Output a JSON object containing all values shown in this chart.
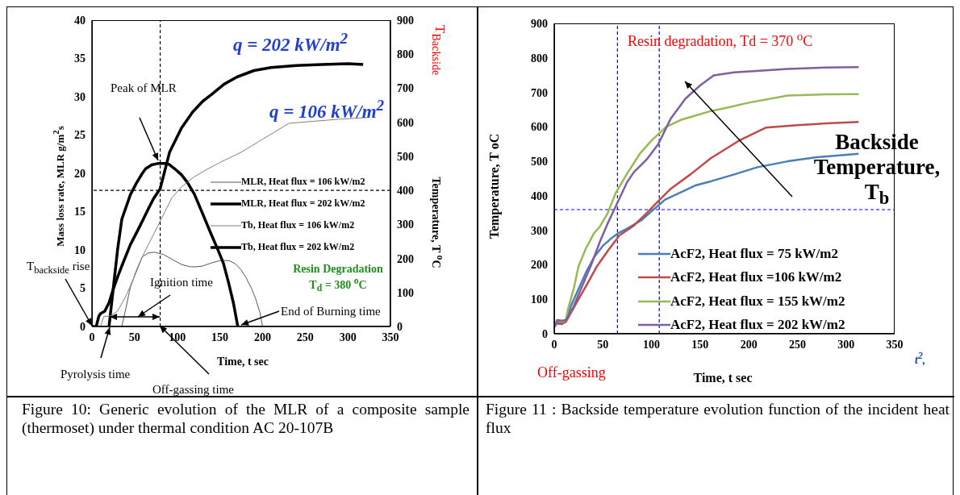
{
  "chart_data": [
    {
      "type": "line",
      "xlabel": "Time, t sec",
      "ylabel": "Mass loss rate, MLR g/m$^{2}$s",
      "y2label": "Temperature, T $^{o}$C",
      "xlim": [
        0,
        350
      ],
      "xticks": [
        0,
        50,
        100,
        150,
        200,
        250,
        300,
        350
      ],
      "ylim": [
        0,
        40
      ],
      "yticks": [
        0,
        5,
        10,
        15,
        20,
        25,
        30,
        35,
        40
      ],
      "y2lim": [
        0,
        900
      ],
      "y2ticks": [
        0,
        100,
        200,
        300,
        400,
        500,
        600,
        700,
        800,
        900
      ],
      "legend": "right",
      "marker": "none",
      "line_style": "solid",
      "series": [
        {
          "name": "MLR, Heat flux = 106 kW/m2",
          "color": "#555555",
          "x": [
            35,
            40,
            45,
            52,
            59,
            66,
            73,
            84,
            95,
            105,
            115,
            122,
            130,
            140,
            150,
            161,
            168,
            175,
            181,
            187,
            192,
            197,
            200
          ],
          "values": [
            0,
            2.5,
            5.1,
            7.3,
            9.1,
            9.6,
            9.7,
            9.4,
            8.7,
            8.1,
            7.8,
            7.8,
            7.9,
            8.3,
            8.6,
            8.6,
            8.2,
            7.4,
            6.3,
            5,
            3.6,
            1.8,
            0
          ]
        },
        {
          "name": "MLR, Heat flux = 202 kW/m2",
          "color": "#000000",
          "x": [
            20,
            25,
            30,
            35,
            45,
            52,
            59,
            63,
            70,
            78,
            85,
            90,
            97,
            105,
            112,
            120,
            128,
            134,
            140,
            147,
            154,
            160,
            166,
            171
          ],
          "values": [
            0,
            5,
            10,
            14,
            17.2,
            18.7,
            20,
            20.6,
            21.1,
            21.3,
            21.3,
            21.2,
            20.6,
            19.8,
            18.8,
            17.3,
            15.2,
            13.6,
            12,
            10.2,
            8.3,
            5.8,
            3,
            0
          ]
        },
        {
          "name": "Tb, Heat flux = 106 kW/m2",
          "color": "#808080",
          "axis": "y2",
          "x": [
            0,
            10,
            14,
            18,
            22,
            30,
            40,
            52,
            60,
            70,
            77,
            85,
            94,
            105,
            120,
            133,
            150,
            175,
            200,
            231,
            260,
            290,
            323
          ],
          "values": [
            0,
            0,
            30,
            30,
            32,
            45,
            90,
            160,
            210,
            260,
            294,
            335,
            379,
            410,
            440,
            459,
            482,
            512,
            550,
            597,
            603,
            609,
            614
          ]
        },
        {
          "name": "Tb, Heat flux = 202 kW/m2",
          "color": "#000000",
          "axis": "y2",
          "x": [
            0,
            5,
            8,
            10,
            15,
            20,
            25,
            30,
            35,
            45,
            56,
            65,
            72,
            80,
            91,
            105,
            118,
            130,
            140,
            155,
            170,
            190,
            210,
            240,
            270,
            300,
            318
          ],
          "values": [
            0,
            0,
            30,
            38,
            45,
            70,
            110,
            145,
            178,
            240,
            294,
            340,
            375,
            405,
            512,
            583,
            630,
            662,
            681,
            712,
            733,
            752,
            761,
            767,
            770,
            772,
            770
          ]
        }
      ],
      "ref_lines": [
        {
          "axis": "x",
          "value": 80,
          "color": "#000000",
          "line_style": "dashed"
        },
        {
          "axis": "y2",
          "value": 400,
          "color": "#000000",
          "line_style": "dashed"
        }
      ],
      "annotations": [
        "q = 202 kW/m$^{2}$",
        "q = 106 kW/m$^{2}$",
        "Peak of MLR",
        "T$_{backside}$ rise",
        "Ignition time",
        "End of Burning time",
        "Pyrolysis time",
        "Off-gassing time",
        "Resin Degradation\nT$_{d}$ = 380 $^{o}$C",
        "T$_{Backside}$",
        "Figure 10: Generic evolution of the MLR of a composite sample (thermoset) under thermal condition AC 20-107B"
      ]
    },
    {
      "type": "line",
      "xlabel": "Time, t sec",
      "ylabel": "Temperature, T oC",
      "xlim": [
        0,
        350
      ],
      "xticks": [
        0,
        50,
        100,
        150,
        200,
        250,
        300,
        350
      ],
      "ylim": [
        0,
        900
      ],
      "yticks": [
        0,
        100,
        200,
        300,
        400,
        500,
        600,
        700,
        800,
        900
      ],
      "legend": "bottom right",
      "marker": "none",
      "line_style": "solid",
      "series": [
        {
          "name": "AcF2, Heat flux = 75 kW/m2",
          "color": "#4a7ebb",
          "x": [
            0,
            3,
            8,
            12,
            17,
            25,
            33,
            41,
            50,
            58,
            66,
            75,
            90,
            100,
            114,
            130,
            145,
            161,
            185,
            209,
            240,
            270,
            313
          ],
          "values": [
            20,
            35,
            30,
            38,
            80,
            130,
            180,
            222,
            255,
            275,
            292,
            305,
            330,
            355,
            389,
            410,
            430,
            442,
            462,
            483,
            500,
            512,
            522
          ]
        },
        {
          "name": "AcF2, Heat flux =106 kW/m2",
          "color": "#be4b48",
          "x": [
            0,
            3,
            8,
            12,
            17,
            25,
            35,
            44,
            55,
            67,
            82,
            95,
            104,
            120,
            140,
            161,
            190,
            218,
            250,
            280,
            313
          ],
          "values": [
            20,
            30,
            28,
            35,
            60,
            100,
            150,
            196,
            240,
            285,
            314,
            350,
            376,
            421,
            462,
            509,
            560,
            598,
            605,
            610,
            614
          ]
        },
        {
          "name": "AcF2, Heat flux = 155 kW/m2",
          "color": "#98b954",
          "x": [
            0,
            3,
            8,
            12,
            14,
            20,
            25,
            33,
            41,
            47,
            55,
            63,
            75,
            88,
            100,
            115,
            130,
            142,
            160,
            177,
            200,
            240,
            280,
            313
          ],
          "values": [
            20,
            38,
            35,
            40,
            70,
            130,
            196,
            250,
            292,
            311,
            350,
            407,
            465,
            522,
            560,
            600,
            620,
            630,
            645,
            655,
            670,
            691,
            694,
            695
          ]
        },
        {
          "name": "AcF2, Heat flux = 202 kW/m2",
          "color": "#7d60a0",
          "x": [
            0,
            3,
            8,
            12,
            20,
            28,
            38,
            47,
            55,
            65,
            75,
            82,
            95,
            107,
            120,
            135,
            150,
            164,
            185,
            208,
            240,
            280,
            313
          ],
          "values": [
            20,
            40,
            38,
            40,
            80,
            133,
            200,
            267,
            320,
            380,
            440,
            469,
            505,
            550,
            625,
            682,
            720,
            749,
            758,
            762,
            768,
            772,
            773
          ]
        }
      ],
      "ref_lines": [
        {
          "axis": "x",
          "value": 65,
          "color": "#0000ff",
          "line_style": "dashed"
        },
        {
          "axis": "x",
          "value": 108,
          "color": "#0000ff",
          "line_style": "dashed"
        },
        {
          "axis": "y",
          "value": 360,
          "color": "#0000ff",
          "line_style": "dashed"
        }
      ],
      "annotations": [
        "Resin degradation, Td = 370 $^{o}$C",
        "Backside\nTemperature,\nT$_{b}$",
        "Off-gassing",
        "t$^{2}$,",
        "Figure 11 : Backside temperature evolution function of the incident heat flux"
      ]
    }
  ]
}
